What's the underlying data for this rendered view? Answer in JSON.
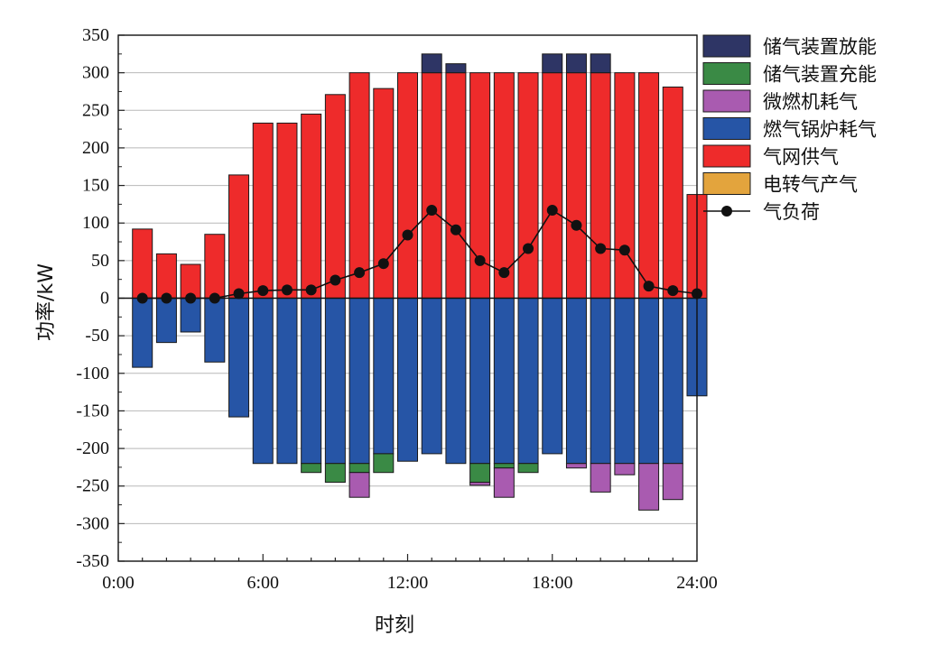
{
  "chart_data": {
    "type": "bar",
    "xlabel": "时刻",
    "ylabel": "功率/kW",
    "ylim": [
      -350,
      350
    ],
    "y_ticks": [
      350,
      300,
      250,
      200,
      150,
      100,
      50,
      0,
      -50,
      -100,
      -150,
      -200,
      -250,
      -300,
      -350
    ],
    "x_tick_labels": [
      "0:00",
      "6:00",
      "12:00",
      "18:00",
      "24:00"
    ],
    "x_ticks_hours": [
      0,
      6,
      12,
      18,
      24
    ],
    "hours": [
      1,
      2,
      3,
      4,
      5,
      6,
      7,
      8,
      9,
      10,
      11,
      12,
      13,
      14,
      15,
      16,
      17,
      18,
      19,
      20,
      21,
      22,
      23,
      24
    ],
    "legend_position": "right",
    "series": [
      {
        "name": "储气装置放能",
        "color": "#2e3565",
        "stack": "positive",
        "values": [
          0,
          0,
          0,
          0,
          0,
          0,
          0,
          0,
          0,
          0,
          0,
          0,
          25,
          12,
          0,
          0,
          0,
          25,
          25,
          25,
          0,
          0,
          0,
          0
        ]
      },
      {
        "name": "储气装置充能",
        "color": "#3a8a45",
        "stack": "negative",
        "values": [
          0,
          0,
          0,
          0,
          0,
          0,
          0,
          -12,
          -25,
          -12,
          -25,
          0,
          0,
          0,
          -25,
          -6,
          -12,
          0,
          0,
          0,
          0,
          0,
          0,
          0
        ]
      },
      {
        "name": "微燃机耗气",
        "color": "#a95bb0",
        "stack": "negative",
        "values": [
          0,
          0,
          0,
          0,
          0,
          0,
          0,
          0,
          0,
          -33,
          0,
          0,
          0,
          0,
          -4,
          -39,
          0,
          0,
          -6,
          -38,
          -15,
          -62,
          -48,
          0
        ]
      },
      {
        "name": "燃气锅炉耗气",
        "color": "#2655a6",
        "stack": "negative",
        "values": [
          -92,
          -59,
          -45,
          -85,
          -158,
          -220,
          -220,
          -220,
          -220,
          -220,
          -207,
          -217,
          -207,
          -220,
          -220,
          -220,
          -220,
          -207,
          -220,
          -220,
          -220,
          -220,
          -220,
          -130
        ]
      },
      {
        "name": "气网供气",
        "color": "#ee2b2b",
        "stack": "positive",
        "values": [
          92,
          59,
          45,
          85,
          164,
          233,
          233,
          245,
          271,
          300,
          279,
          300,
          300,
          300,
          300,
          300,
          300,
          300,
          300,
          300,
          300,
          300,
          281,
          138
        ]
      },
      {
        "name": "电转气产气",
        "color": "#e3a43d",
        "stack": "positive",
        "values": [
          0,
          0,
          0,
          0,
          0,
          0,
          0,
          0,
          0,
          0,
          0,
          0,
          0,
          0,
          0,
          0,
          0,
          0,
          0,
          0,
          0,
          0,
          0,
          0
        ]
      }
    ],
    "line_series": {
      "name": "气负荷",
      "color": "#111111",
      "values": [
        0,
        0,
        0,
        0,
        6,
        10,
        11,
        11,
        24,
        34,
        46,
        84,
        117,
        91,
        50,
        34,
        66,
        117,
        97,
        66,
        64,
        16,
        10,
        6
      ]
    }
  }
}
